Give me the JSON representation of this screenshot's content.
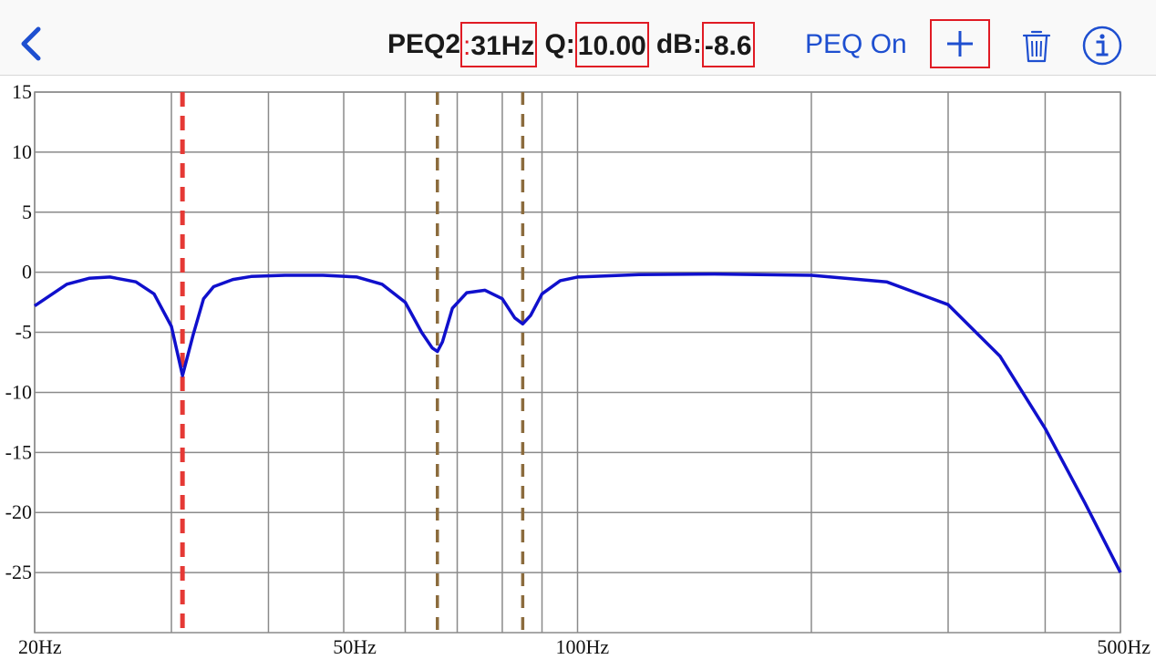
{
  "window": {
    "minimize": "–",
    "maximize": "□",
    "close": "×"
  },
  "toolbar": {
    "back_icon": "chevron-left-icon",
    "title_prefix": "PEQ2",
    "title_colon": ":",
    "frequency": "31Hz",
    "q_label": "Q:",
    "q_value": "10.00",
    "db_label": "dB:",
    "db_value": "-8.6",
    "peq_status": "PEQ On",
    "add_icon": "plus-icon",
    "delete_icon": "trash-icon",
    "info_icon": "info-icon",
    "accent_color": "#1e4fd0",
    "highlight_color": "#e01b24"
  },
  "chart_data": {
    "type": "line",
    "x_scale": "log",
    "xlim": [
      20,
      500
    ],
    "ylim": [
      -30,
      15
    ],
    "y_ticks": [
      15,
      10,
      5,
      0,
      -5,
      -10,
      -15,
      -20,
      -25
    ],
    "y_tick_labels": [
      "15",
      "10",
      "5",
      "0",
      "-5",
      "-10",
      "-15",
      "-20",
      "-25"
    ],
    "x_grid_freqs": [
      20,
      30,
      40,
      50,
      60,
      70,
      80,
      90,
      100,
      200,
      300,
      400,
      500
    ],
    "x_tick_labels": [
      {
        "freq": 20,
        "label": "20Hz"
      },
      {
        "freq": 50,
        "label": "50Hz"
      },
      {
        "freq": 100,
        "label": "100Hz"
      },
      {
        "freq": 500,
        "label": "500Hz"
      }
    ],
    "grid": true,
    "filter_markers": [
      {
        "freq": 31,
        "selected": true,
        "color": "#e53935"
      },
      {
        "freq": 66,
        "selected": false,
        "color": "#8b6b3d"
      },
      {
        "freq": 85,
        "selected": false,
        "color": "#8b6b3d"
      }
    ],
    "series": [
      {
        "color": "#1010cc",
        "x": [
          20,
          22,
          23.5,
          25,
          27,
          28.5,
          30,
          31,
          32,
          33,
          34,
          36,
          38,
          42,
          47,
          52,
          56,
          60,
          63,
          65,
          66,
          67,
          69,
          72,
          76,
          80,
          83,
          85,
          87,
          90,
          95,
          100,
          120,
          150,
          200,
          250,
          300,
          350,
          400,
          450,
          500
        ],
        "y": [
          -2.8,
          -1.0,
          -0.5,
          -0.4,
          -0.8,
          -1.8,
          -4.5,
          -8.6,
          -5.2,
          -2.2,
          -1.2,
          -0.6,
          -0.35,
          -0.25,
          -0.25,
          -0.4,
          -1.0,
          -2.5,
          -5.0,
          -6.3,
          -6.6,
          -5.8,
          -3.0,
          -1.7,
          -1.5,
          -2.2,
          -3.8,
          -4.3,
          -3.6,
          -1.8,
          -0.7,
          -0.4,
          -0.2,
          -0.15,
          -0.25,
          -0.8,
          -2.7,
          -7.0,
          -13.0,
          -19.2,
          -25.0
        ]
      }
    ]
  }
}
